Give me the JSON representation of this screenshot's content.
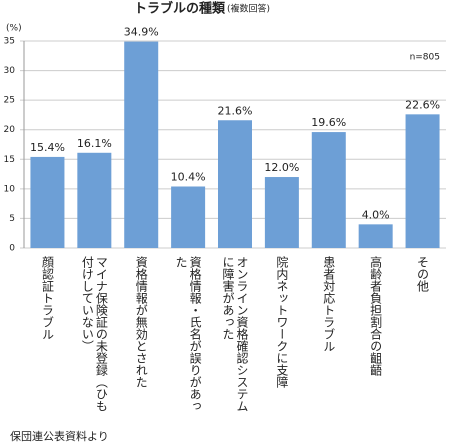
{
  "chart_data": {
    "type": "bar",
    "title": "トラブルの種類",
    "subtitle": "(複数回答)",
    "y_unit": "(%)",
    "note": "n=805",
    "source": "保団連公表資料より",
    "categories": [
      "顔認証トラブル",
      "マイナ保険証の未登録（ひも付けしていない）",
      "資格情報が無効とされた",
      "資格情報・氏名が誤りがあった",
      "オンライン資格確認システムに障害があった",
      "院内ネットワークに支障",
      "患者対応トラブル",
      "高齢者負担割合の齟齬",
      "その他"
    ],
    "values": [
      15.4,
      16.1,
      34.9,
      10.4,
      21.6,
      12.0,
      19.6,
      4.0,
      22.6
    ],
    "value_labels": [
      "15.4%",
      "16.1%",
      "34.9%",
      "10.4%",
      "21.6%",
      "12.0%",
      "19.6%",
      "4.0%",
      "22.6%"
    ],
    "color": "#6d9fd6",
    "ylim": [
      0,
      35
    ],
    "yticks": [
      0,
      5,
      10,
      15,
      20,
      25,
      30,
      35
    ],
    "grid": true
  }
}
